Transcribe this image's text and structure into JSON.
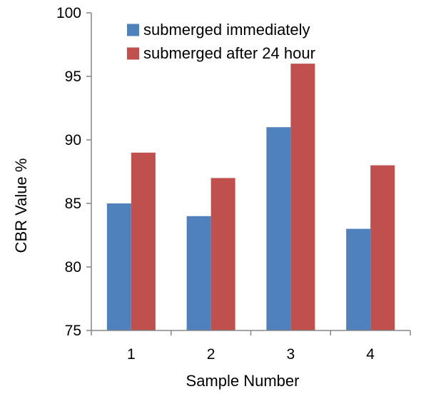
{
  "chart_data": {
    "type": "bar",
    "title": "",
    "xlabel": "Sample Number",
    "ylabel": "CBR Value %",
    "categories": [
      "1",
      "2",
      "3",
      "4"
    ],
    "ylim": [
      75,
      100
    ],
    "yticks": [
      75,
      80,
      85,
      90,
      95,
      100
    ],
    "grid": false,
    "legend_position": "top",
    "series": [
      {
        "name": "submerged immediately",
        "color": "#4f81bd",
        "values": [
          85,
          84,
          91,
          83
        ]
      },
      {
        "name": "submerged after 24 hour",
        "color": "#c0504d",
        "values": [
          89,
          87,
          96,
          88
        ]
      }
    ]
  }
}
